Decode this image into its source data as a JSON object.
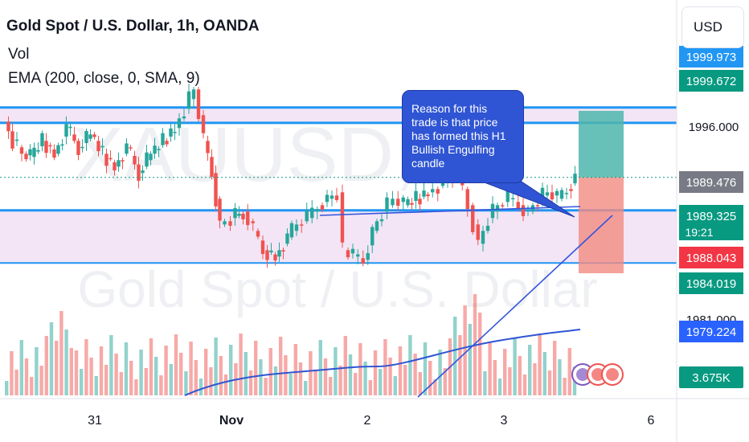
{
  "legend": {
    "title": "Gold Spot / U.S. Dollar, 1h, OANDA",
    "vol": "Vol",
    "ema": "EMA (200, close, 0, SMA, 9)"
  },
  "watermark": {
    "symbol": "XAUUSD, 1h",
    "name": "Gold Spot / U.S. Dollar"
  },
  "currency_button": "USD",
  "callout": {
    "text": "Reason for this trade is that price has formed this H1 Bullish Engulfing candle"
  },
  "colors": {
    "up": "#26a69a",
    "down": "#ef5350",
    "zone": "#f3e5f5",
    "zone_line": "#2196f3",
    "trendline": "#3355dd",
    "ema": "#2f55d4",
    "target": "#4db6ac",
    "stop": "#f28b82"
  },
  "chart_data": {
    "type": "candlestick",
    "title": "Gold Spot / U.S. Dollar, 1h, OANDA",
    "ylim": [
      1976,
      2004
    ],
    "y_ticks": [
      1996.0
    ],
    "x_ticks": [
      "31",
      "Nov",
      "2",
      "3",
      "6"
    ],
    "price_labels": [
      {
        "value": "1999.973",
        "color": "#2196f3",
        "text_color": "#ffffff"
      },
      {
        "value": "1999.672",
        "color": "#089981",
        "text_color": "#ffffff"
      },
      {
        "value": "1989.476",
        "color": "#787b86",
        "text_color": "#ffffff"
      },
      {
        "value": "1989.325",
        "sub": "19:21",
        "color": "#089981",
        "text_color": "#ffffff"
      },
      {
        "value": "1988.043",
        "color": "#f23645",
        "text_color": "#ffffff"
      },
      {
        "value": "1984.019",
        "color": "#089981",
        "text_color": "#ffffff"
      },
      {
        "value": "1981.000",
        "color": "#ffffff",
        "text_color": "#131722"
      },
      {
        "value": "1979.224",
        "color": "#2962ff",
        "text_color": "#ffffff"
      },
      {
        "value": "3.675K",
        "color": "#089981",
        "text_color": "#ffffff"
      }
    ],
    "zones": [
      {
        "top": 2000.2,
        "bottom": 1997.8
      },
      {
        "top": 1984.2,
        "bottom": 1976.0
      }
    ],
    "position": {
      "entry": 1989.325,
      "target": 1999.672,
      "stop": 1988.043
    },
    "candles": []
  }
}
